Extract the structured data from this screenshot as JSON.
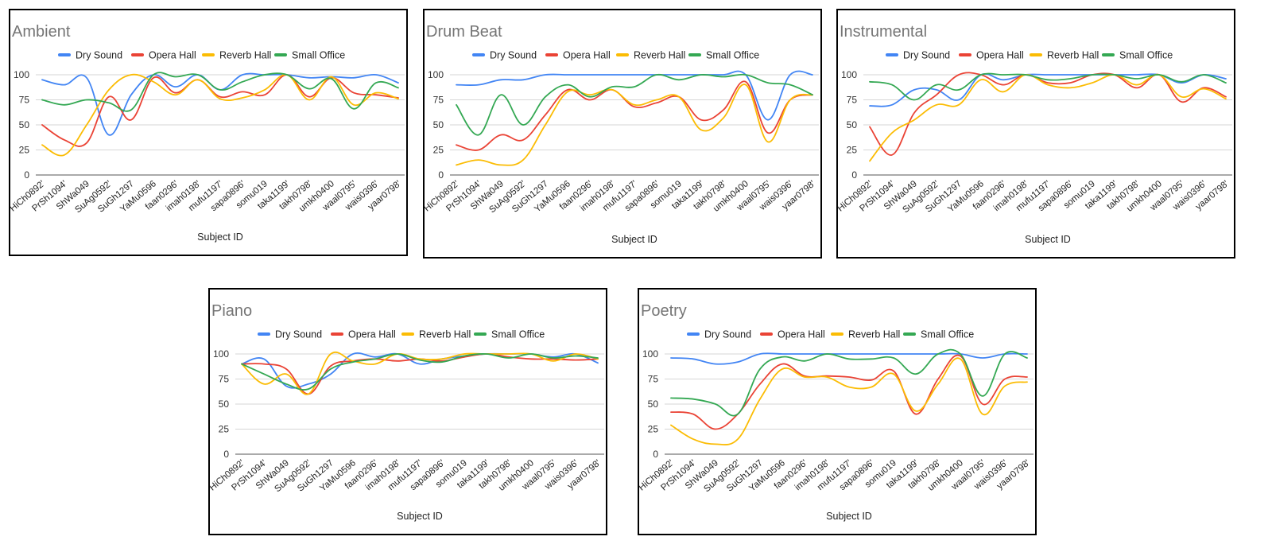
{
  "chart_data": [
    {
      "type": "line",
      "title": "Ambient",
      "xlabel": "Subject ID",
      "ylabel": "",
      "ylim": [
        0,
        100
      ],
      "yticks": [
        0,
        25,
        50,
        75,
        100
      ],
      "grid": true,
      "legend_position": "top",
      "categories": [
        "HiCh0892'",
        "PrSh1094'",
        "ShWa049",
        "SuAg0592'",
        "SuGh1297",
        "YaMu0596",
        "faan0296'",
        "imah0198'",
        "mufu1197'",
        "sapa0896'",
        "somu019",
        "taka1199'",
        "takh0798'",
        "umkh0400",
        "waal0795'",
        "wais0396'",
        "yaar0798'"
      ],
      "series": [
        {
          "name": "Dry Sound",
          "color": "#4285f4",
          "values": [
            95,
            90,
            97,
            40,
            80,
            100,
            88,
            100,
            85,
            100,
            100,
            100,
            97,
            98,
            97,
            100,
            92
          ]
        },
        {
          "name": "Opera Hall",
          "color": "#ea4335",
          "values": [
            50,
            35,
            32,
            78,
            55,
            97,
            82,
            95,
            78,
            83,
            80,
            100,
            78,
            97,
            82,
            80,
            77
          ]
        },
        {
          "name": "Reverb Hall",
          "color": "#fbbc04",
          "values": [
            30,
            20,
            50,
            85,
            100,
            93,
            80,
            95,
            76,
            77,
            85,
            100,
            75,
            98,
            70,
            82,
            76
          ]
        },
        {
          "name": "Small Office",
          "color": "#34a853",
          "values": [
            75,
            70,
            75,
            72,
            65,
            100,
            98,
            100,
            85,
            93,
            100,
            100,
            86,
            96,
            66,
            92,
            87
          ]
        }
      ]
    },
    {
      "type": "line",
      "title": "Drum Beat",
      "xlabel": "Subject ID",
      "ylabel": "",
      "ylim": [
        0,
        100
      ],
      "yticks": [
        0,
        25,
        50,
        75,
        100
      ],
      "grid": true,
      "legend_position": "top",
      "categories": [
        "HiCh0892'",
        "PrSh1094'",
        "ShWa049",
        "SuAg0592'",
        "SuGh1297",
        "YaMu0596",
        "faan0296'",
        "imah0198'",
        "mufu1197'",
        "sapa0896'",
        "somu019",
        "taka1199'",
        "takh0798'",
        "umkh0400",
        "waal0795'",
        "wais0396'",
        "yaar0798'"
      ],
      "series": [
        {
          "name": "Dry Sound",
          "color": "#4285f4",
          "values": [
            90,
            90,
            95,
            95,
            100,
            100,
            100,
            100,
            100,
            100,
            100,
            100,
            100,
            100,
            55,
            100,
            100
          ]
        },
        {
          "name": "Opera Hall",
          "color": "#ea4335",
          "values": [
            30,
            25,
            40,
            35,
            60,
            85,
            75,
            85,
            68,
            72,
            78,
            55,
            65,
            93,
            42,
            75,
            80
          ]
        },
        {
          "name": "Reverb Hall",
          "color": "#fbbc04",
          "values": [
            10,
            15,
            10,
            15,
            50,
            83,
            80,
            85,
            70,
            75,
            78,
            45,
            57,
            90,
            33,
            75,
            80
          ]
        },
        {
          "name": "Small Office",
          "color": "#34a853",
          "values": [
            70,
            40,
            80,
            50,
            78,
            90,
            78,
            88,
            88,
            100,
            95,
            100,
            98,
            100,
            92,
            90,
            80
          ]
        }
      ]
    },
    {
      "type": "line",
      "title": "Instrumental",
      "xlabel": "Subject ID",
      "ylabel": "",
      "ylim": [
        0,
        100
      ],
      "yticks": [
        0,
        25,
        50,
        75,
        100
      ],
      "grid": true,
      "legend_position": "top",
      "categories": [
        "HiCh0892'",
        "PrSh1094'",
        "ShWa049",
        "SuAg0592'",
        "SuGh1297",
        "YaMu0596",
        "faan0296'",
        "imah0198'",
        "mufu1197'",
        "sapa0896'",
        "somu019",
        "taka1199'",
        "takh0798'",
        "umkh0400",
        "waal0795'",
        "wais0396'",
        "yaar0798'"
      ],
      "series": [
        {
          "name": "Dry Sound",
          "color": "#4285f4",
          "values": [
            69,
            70,
            85,
            85,
            75,
            100,
            95,
            100,
            100,
            100,
            100,
            100,
            100,
            100,
            92,
            100,
            96
          ]
        },
        {
          "name": "Opera Hall",
          "color": "#ea4335",
          "values": [
            48,
            20,
            62,
            80,
            100,
            100,
            90,
            100,
            92,
            92,
            100,
            100,
            87,
            100,
            73,
            87,
            78
          ]
        },
        {
          "name": "Reverb Hall",
          "color": "#fbbc04",
          "values": [
            14,
            42,
            55,
            70,
            70,
            95,
            83,
            100,
            90,
            87,
            92,
            100,
            90,
            100,
            78,
            86,
            76
          ]
        },
        {
          "name": "Small Office",
          "color": "#34a853",
          "values": [
            93,
            90,
            75,
            90,
            85,
            100,
            100,
            100,
            95,
            96,
            100,
            100,
            96,
            100,
            93,
            100,
            92
          ]
        }
      ]
    },
    {
      "type": "line",
      "title": "Piano",
      "xlabel": "Subject ID",
      "ylabel": "",
      "ylim": [
        0,
        100
      ],
      "yticks": [
        0,
        25,
        50,
        75,
        100
      ],
      "grid": true,
      "legend_position": "top",
      "categories": [
        "HiCh0892'",
        "PrSh1094'",
        "ShWa049",
        "SuAg0592'",
        "SuGh1297",
        "YaMu0596",
        "faan0296'",
        "imah0198'",
        "mufu1197'",
        "sapa0896'",
        "somu019",
        "taka1199'",
        "takh0798'",
        "umkh0400",
        "waal0795'",
        "wais0396'",
        "yaar0798'"
      ],
      "series": [
        {
          "name": "Dry Sound",
          "color": "#4285f4",
          "values": [
            90,
            95,
            68,
            70,
            80,
            100,
            97,
            100,
            90,
            95,
            98,
            100,
            100,
            100,
            97,
            100,
            91
          ]
        },
        {
          "name": "Opera Hall",
          "color": "#ea4335",
          "values": [
            90,
            90,
            85,
            60,
            88,
            93,
            95,
            93,
            95,
            93,
            97,
            100,
            97,
            95,
            95,
            94,
            95
          ]
        },
        {
          "name": "Reverb Hall",
          "color": "#fbbc04",
          "values": [
            90,
            70,
            80,
            60,
            100,
            93,
            90,
            100,
            95,
            95,
            100,
            100,
            100,
            100,
            93,
            100,
            95
          ]
        },
        {
          "name": "Small Office",
          "color": "#34a853",
          "values": [
            90,
            80,
            70,
            65,
            85,
            92,
            95,
            100,
            94,
            92,
            98,
            100,
            96,
            100,
            96,
            98,
            96
          ]
        }
      ]
    },
    {
      "type": "line",
      "title": "Poetry",
      "xlabel": "Subject ID",
      "ylabel": "",
      "ylim": [
        0,
        100
      ],
      "yticks": [
        0,
        25,
        50,
        75,
        100
      ],
      "grid": true,
      "legend_position": "top",
      "categories": [
        "HiCh0892'",
        "PrSh1094'",
        "ShWa049",
        "SuAg0592'",
        "SuGh1297",
        "YaMu0596",
        "faan0296'",
        "imah0198'",
        "mufu1197'",
        "sapa0896'",
        "somu019",
        "taka1199'",
        "takh0798'",
        "umkh0400",
        "waal0795'",
        "wais0396'",
        "yaar0798'"
      ],
      "series": [
        {
          "name": "Dry Sound",
          "color": "#4285f4",
          "values": [
            96,
            95,
            90,
            92,
            100,
            100,
            100,
            100,
            100,
            100,
            100,
            100,
            100,
            100,
            96,
            100,
            100
          ]
        },
        {
          "name": "Opera Hall",
          "color": "#ea4335",
          "values": [
            42,
            40,
            25,
            40,
            70,
            90,
            78,
            78,
            77,
            74,
            83,
            40,
            75,
            98,
            50,
            75,
            77
          ]
        },
        {
          "name": "Reverb Hall",
          "color": "#fbbc04",
          "values": [
            29,
            15,
            10,
            15,
            55,
            85,
            77,
            77,
            67,
            67,
            80,
            43,
            70,
            95,
            40,
            68,
            72
          ]
        },
        {
          "name": "Small Office",
          "color": "#34a853",
          "values": [
            56,
            55,
            50,
            40,
            85,
            97,
            93,
            100,
            95,
            95,
            96,
            80,
            100,
            100,
            58,
            100,
            96
          ]
        }
      ]
    }
  ]
}
